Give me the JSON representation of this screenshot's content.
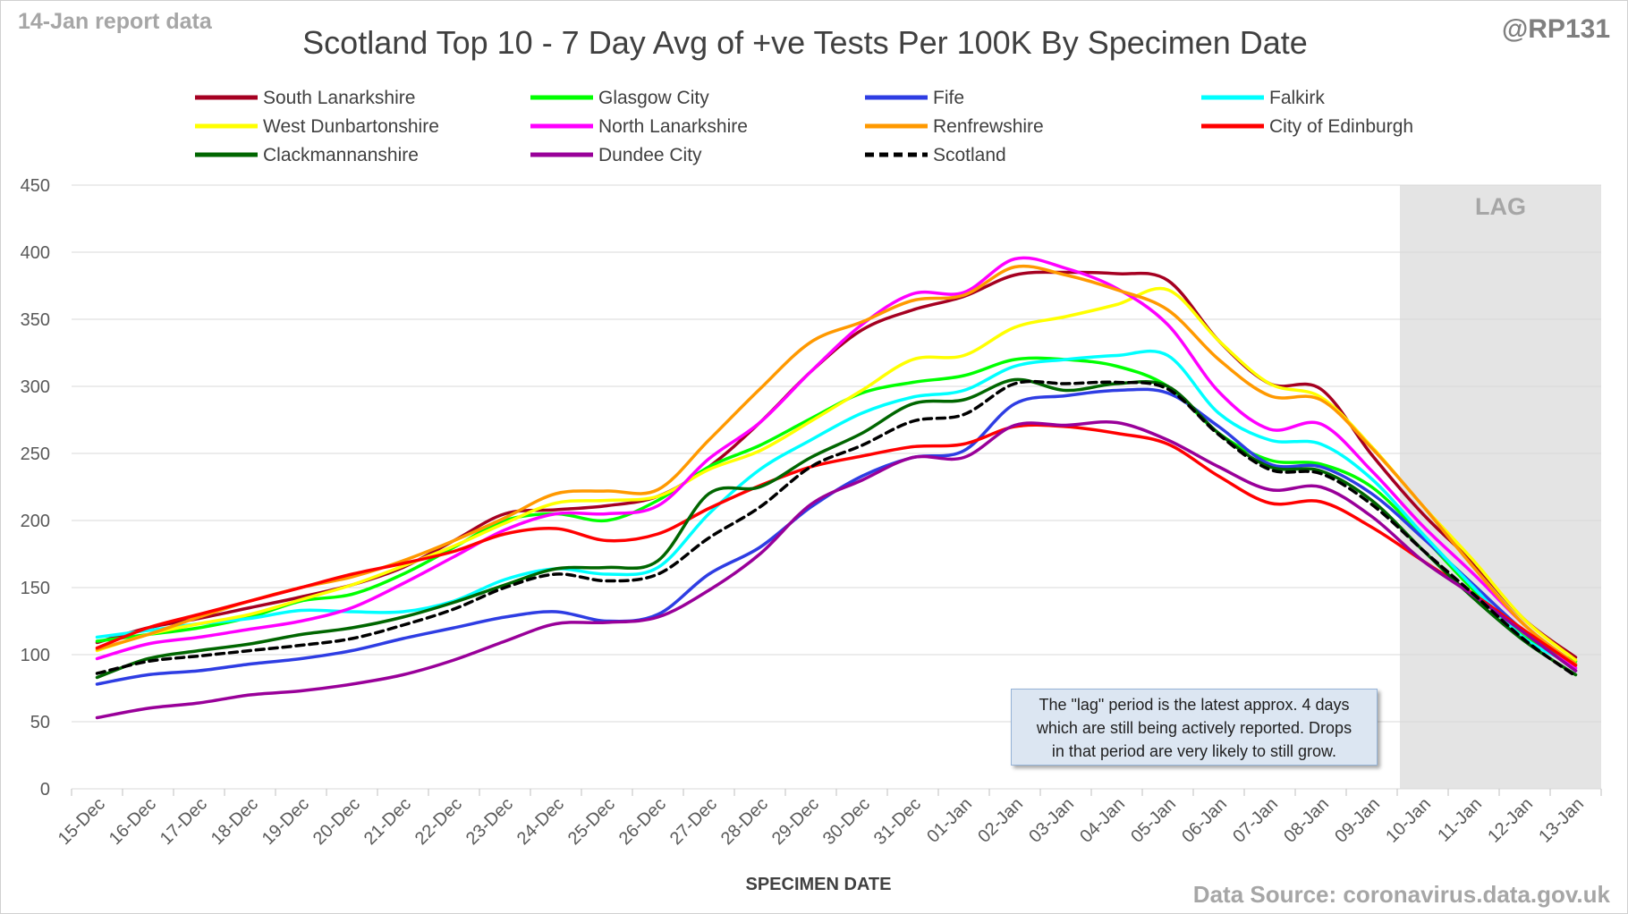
{
  "header": {
    "report_note": "14-Jan report data",
    "handle": "@RP131"
  },
  "footer": {
    "source": "Data Source: coronavirus.data.gov.uk"
  },
  "annotation": {
    "lag_label": "LAG",
    "note_lines": [
      "The \"lag\" period is the latest approx. 4 days",
      "which are still being actively reported.  Drops",
      "in that period are very likely to still grow."
    ]
  },
  "chart_data": {
    "type": "line",
    "title": "Scotland Top 10 - 7 Day Avg of +ve Tests Per 100K By Specimen Date",
    "xlabel": "SPECIMEN DATE",
    "ylabel": "",
    "ylim": [
      0,
      450
    ],
    "yticks": [
      0,
      50,
      100,
      150,
      200,
      250,
      300,
      350,
      400,
      450
    ],
    "grid": true,
    "legend_position": "top",
    "lag_start": "10-Jan",
    "categories": [
      "15-Dec",
      "16-Dec",
      "17-Dec",
      "18-Dec",
      "19-Dec",
      "20-Dec",
      "21-Dec",
      "22-Dec",
      "23-Dec",
      "24-Dec",
      "25-Dec",
      "26-Dec",
      "27-Dec",
      "28-Dec",
      "29-Dec",
      "30-Dec",
      "31-Dec",
      "01-Jan",
      "02-Jan",
      "03-Jan",
      "04-Jan",
      "05-Jan",
      "06-Jan",
      "07-Jan",
      "08-Jan",
      "09-Jan",
      "10-Jan",
      "11-Jan",
      "12-Jan",
      "13-Jan"
    ],
    "series": [
      {
        "name": "South Lanarkshire",
        "color": "#a50021",
        "dashed": false,
        "values": [
          109,
          120,
          127,
          135,
          143,
          152,
          165,
          185,
          205,
          208,
          211,
          218,
          240,
          273,
          311,
          342,
          357,
          367,
          383,
          385,
          384,
          379,
          334,
          302,
          298,
          249,
          205,
          168,
          126,
          98
        ]
      },
      {
        "name": "Glasgow City",
        "color": "#00ff00",
        "dashed": false,
        "values": [
          110,
          115,
          120,
          128,
          140,
          145,
          160,
          180,
          200,
          205,
          200,
          215,
          240,
          256,
          276,
          295,
          303,
          308,
          320,
          320,
          315,
          300,
          265,
          245,
          242,
          225,
          188,
          148,
          113,
          95
        ]
      },
      {
        "name": "Fife",
        "color": "#2e3de3",
        "dashed": false,
        "values": [
          78,
          85,
          88,
          93,
          97,
          103,
          112,
          120,
          128,
          132,
          125,
          130,
          160,
          180,
          210,
          233,
          247,
          252,
          287,
          293,
          297,
          295,
          270,
          242,
          240,
          220,
          187,
          152,
          117,
          88
        ]
      },
      {
        "name": "Falkirk",
        "color": "#00ffff",
        "dashed": false,
        "values": [
          113,
          118,
          123,
          127,
          133,
          132,
          132,
          140,
          156,
          164,
          160,
          165,
          205,
          238,
          260,
          280,
          292,
          297,
          315,
          320,
          323,
          323,
          280,
          260,
          257,
          231,
          190,
          150,
          112,
          92
        ]
      },
      {
        "name": "West Dunbartonshire",
        "color": "#ffff00",
        "dashed": false,
        "values": [
          103,
          115,
          123,
          130,
          141,
          152,
          166,
          181,
          198,
          213,
          215,
          218,
          238,
          252,
          274,
          297,
          320,
          323,
          344,
          352,
          361,
          372,
          334,
          302,
          292,
          255,
          211,
          170,
          126,
          96
        ]
      },
      {
        "name": "North Lanarkshire",
        "color": "#ff00ff",
        "dashed": false,
        "values": [
          97,
          108,
          113,
          119,
          125,
          135,
          153,
          173,
          193,
          205,
          205,
          211,
          246,
          273,
          311,
          346,
          369,
          370,
          395,
          388,
          373,
          346,
          296,
          268,
          272,
          237,
          196,
          160,
          122,
          90
        ]
      },
      {
        "name": "Renfrewshire",
        "color": "#ff9900",
        "dashed": false,
        "values": [
          104,
          115,
          128,
          140,
          150,
          158,
          170,
          185,
          202,
          220,
          222,
          223,
          260,
          298,
          333,
          348,
          364,
          368,
          389,
          383,
          372,
          357,
          320,
          293,
          290,
          254,
          211,
          165,
          122,
          93
        ]
      },
      {
        "name": "City of Edinburgh",
        "color": "#ff0000",
        "dashed": false,
        "values": [
          105,
          120,
          130,
          140,
          150,
          160,
          168,
          177,
          190,
          194,
          185,
          190,
          209,
          226,
          240,
          248,
          255,
          257,
          270,
          270,
          265,
          257,
          233,
          213,
          214,
          195,
          170,
          145,
          118,
          92
        ]
      },
      {
        "name": "Clackmannanshire",
        "color": "#006600",
        "dashed": false,
        "values": [
          83,
          97,
          103,
          108,
          115,
          120,
          128,
          139,
          152,
          164,
          165,
          170,
          220,
          225,
          247,
          265,
          287,
          290,
          305,
          297,
          302,
          300,
          265,
          240,
          237,
          215,
          178,
          142,
          110,
          85
        ]
      },
      {
        "name": "Dundee City",
        "color": "#990099",
        "dashed": false,
        "values": [
          53,
          60,
          64,
          70,
          73,
          78,
          85,
          96,
          110,
          123,
          124,
          128,
          148,
          175,
          212,
          230,
          247,
          247,
          271,
          271,
          273,
          260,
          240,
          223,
          225,
          203,
          170,
          144,
          116,
          88
        ]
      },
      {
        "name": "Scotland",
        "color": "#000000",
        "dashed": true,
        "values": [
          86,
          95,
          99,
          103,
          107,
          112,
          122,
          134,
          150,
          160,
          155,
          160,
          187,
          210,
          240,
          256,
          274,
          279,
          302,
          302,
          303,
          298,
          264,
          238,
          235,
          212,
          178,
          145,
          111,
          84
        ]
      }
    ]
  }
}
